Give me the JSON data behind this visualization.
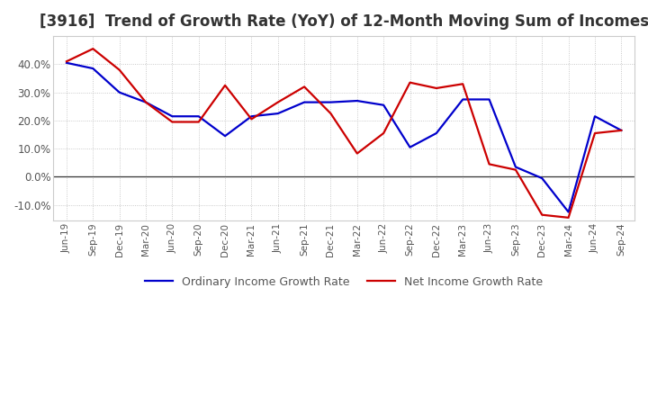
{
  "title": "[3916]  Trend of Growth Rate (YoY) of 12-Month Moving Sum of Incomes",
  "ylim": [
    -0.155,
    0.5
  ],
  "yticks": [
    -0.1,
    0.0,
    0.1,
    0.2,
    0.3,
    0.4
  ],
  "background_color": "#ffffff",
  "grid_color": "#bbbbbb",
  "title_fontsize": 12,
  "x_labels": [
    "Jun-19",
    "Sep-19",
    "Dec-19",
    "Mar-20",
    "Jun-20",
    "Sep-20",
    "Dec-20",
    "Mar-21",
    "Jun-21",
    "Sep-21",
    "Dec-21",
    "Mar-22",
    "Jun-22",
    "Sep-22",
    "Dec-22",
    "Mar-23",
    "Jun-23",
    "Sep-23",
    "Dec-23",
    "Mar-24",
    "Jun-24",
    "Sep-24"
  ],
  "ordinary_income": [
    0.405,
    0.385,
    0.3,
    0.265,
    0.215,
    0.215,
    0.145,
    0.215,
    0.225,
    0.265,
    0.265,
    0.27,
    0.255,
    0.105,
    0.155,
    0.275,
    0.275,
    0.035,
    -0.005,
    -0.125,
    0.215,
    0.165
  ],
  "net_income": [
    0.41,
    0.455,
    0.38,
    0.265,
    0.195,
    0.195,
    0.325,
    0.205,
    0.265,
    0.32,
    0.225,
    0.083,
    0.155,
    0.335,
    0.315,
    0.33,
    0.045,
    0.025,
    -0.135,
    -0.145,
    0.155,
    0.165
  ],
  "ordinary_color": "#0000cc",
  "net_color": "#cc0000",
  "line_width": 1.6,
  "legend_ordinary": "Ordinary Income Growth Rate",
  "legend_net": "Net Income Growth Rate"
}
